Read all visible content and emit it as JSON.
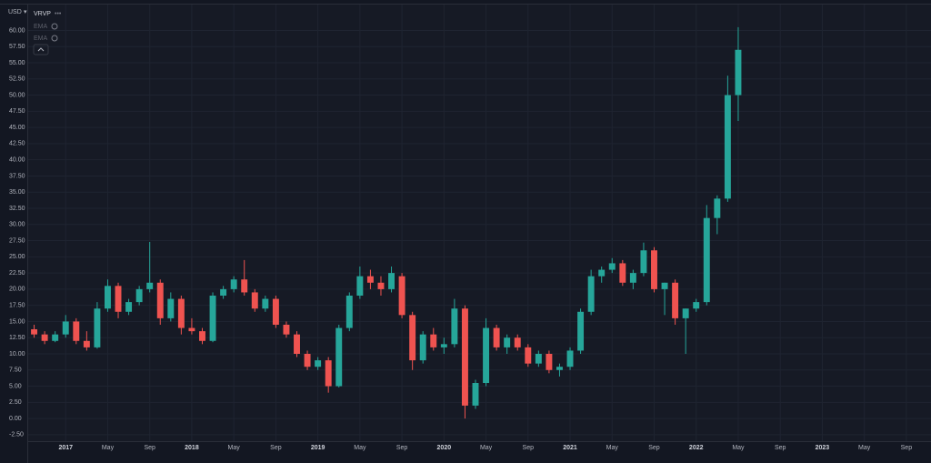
{
  "chart_data": {
    "type": "candlestick",
    "currency": "USD",
    "indicators": [
      "VRVP",
      "EMA",
      "EMA"
    ],
    "up_color": "#26a69a",
    "down_color": "#ef5350",
    "grid": true,
    "x": [
      "2016-10",
      "2016-11",
      "2016-12",
      "2017-01",
      "2017-02",
      "2017-03",
      "2017-04",
      "2017-05",
      "2017-06",
      "2017-07",
      "2017-08",
      "2017-09",
      "2017-10",
      "2017-11",
      "2017-12",
      "2018-01",
      "2018-02",
      "2018-03",
      "2018-04",
      "2018-05",
      "2018-06",
      "2018-07",
      "2018-08",
      "2018-09",
      "2018-10",
      "2018-11",
      "2018-12",
      "2019-01",
      "2019-02",
      "2019-03",
      "2019-04",
      "2019-05",
      "2019-06",
      "2019-07",
      "2019-08",
      "2019-09",
      "2019-10",
      "2019-11",
      "2019-12",
      "2020-01",
      "2020-02",
      "2020-03",
      "2020-04",
      "2020-05",
      "2020-06",
      "2020-07",
      "2020-08",
      "2020-09",
      "2020-10",
      "2020-11",
      "2020-12",
      "2021-01",
      "2021-02",
      "2021-03",
      "2021-04",
      "2021-05",
      "2021-06",
      "2021-07",
      "2021-08",
      "2021-09",
      "2021-10",
      "2021-11",
      "2021-12",
      "2022-01",
      "2022-02",
      "2022-03",
      "2022-04",
      "2022-05"
    ],
    "open": [
      13.8,
      13,
      12,
      13,
      15,
      12,
      11,
      17,
      20.5,
      16.5,
      18,
      20,
      21,
      15.5,
      18.5,
      14,
      13.5,
      12,
      19,
      20,
      21.5,
      19.5,
      17,
      18.5,
      14.5,
      13,
      10,
      8,
      9,
      5,
      14,
      19,
      22,
      21,
      20,
      22,
      16,
      9,
      13,
      11,
      11.5,
      17,
      2,
      5.5,
      14,
      11,
      12.5,
      11,
      8.5,
      10,
      7.5,
      8,
      10.5,
      16.5,
      22,
      23,
      24,
      21,
      22.5,
      26,
      20,
      21,
      15.5,
      17,
      18,
      31,
      34,
      50
    ],
    "high": [
      14.5,
      13.5,
      13.5,
      16,
      15.5,
      13.5,
      18,
      21.5,
      21,
      18.5,
      20.5,
      27.3,
      21.5,
      19.5,
      19,
      15.5,
      14,
      19.5,
      20.5,
      22,
      24.5,
      20,
      19,
      19,
      15,
      13.5,
      10.5,
      9.5,
      9.5,
      14.5,
      19.5,
      23.5,
      23,
      22,
      23.5,
      22.5,
      16.5,
      13.5,
      14,
      12.5,
      18.5,
      17.5,
      6,
      15.5,
      14.5,
      13,
      13,
      11.5,
      10.5,
      10.5,
      8.5,
      11,
      17,
      23,
      23.5,
      24.8,
      24.5,
      23,
      27.2,
      26.5,
      21,
      21.5,
      17,
      18.5,
      33,
      34.5,
      53,
      60.5
    ],
    "low": [
      12.5,
      11.5,
      11.8,
      12.5,
      11.5,
      10.5,
      10.8,
      16.5,
      15.5,
      16,
      17.5,
      19.5,
      14.5,
      15,
      13,
      13,
      11.5,
      11.8,
      18.5,
      19.5,
      19,
      16.5,
      16.5,
      14,
      12.5,
      9.5,
      7.5,
      7.5,
      4,
      4.8,
      13.5,
      18.5,
      20,
      19,
      19.5,
      15.5,
      7.5,
      8.5,
      10.5,
      10,
      11,
      0,
      1.5,
      5,
      10.5,
      10,
      10.5,
      8,
      8,
      7,
      6.5,
      7.5,
      10,
      16,
      21,
      22.5,
      20.5,
      20,
      22,
      19.5,
      16,
      14.5,
      10,
      16.5,
      17.5,
      28.5,
      33.5,
      46
    ],
    "close": [
      13,
      12,
      13,
      15,
      12,
      11,
      17,
      20.5,
      16.5,
      18,
      20,
      21,
      15.5,
      18.5,
      14,
      13.5,
      12,
      19,
      20,
      21.5,
      19.5,
      17,
      18.5,
      14.5,
      13,
      10,
      8,
      9,
      5,
      14,
      19,
      22,
      21,
      20,
      22.5,
      16,
      9,
      13,
      11,
      11.5,
      17,
      2,
      5.5,
      14,
      11,
      12.5,
      11,
      8.5,
      10,
      7.5,
      8,
      10.5,
      16.5,
      22,
      23,
      24,
      21,
      22.5,
      26,
      20,
      21,
      15.5,
      17,
      18,
      31,
      34,
      50,
      57
    ],
    "xlim": [
      "2016-09",
      "2023-11"
    ],
    "xticks": [
      {
        "value": "2017-01",
        "label": "2017"
      },
      {
        "value": "2017-05",
        "label": "May"
      },
      {
        "value": "2017-09",
        "label": "Sep"
      },
      {
        "value": "2018-01",
        "label": "2018"
      },
      {
        "value": "2018-05",
        "label": "May"
      },
      {
        "value": "2018-09",
        "label": "Sep"
      },
      {
        "value": "2019-01",
        "label": "2019"
      },
      {
        "value": "2019-05",
        "label": "May"
      },
      {
        "value": "2019-09",
        "label": "Sep"
      },
      {
        "value": "2020-01",
        "label": "2020"
      },
      {
        "value": "2020-05",
        "label": "May"
      },
      {
        "value": "2020-09",
        "label": "Sep"
      },
      {
        "value": "2021-01",
        "label": "2021"
      },
      {
        "value": "2021-05",
        "label": "May"
      },
      {
        "value": "2021-09",
        "label": "Sep"
      },
      {
        "value": "2022-01",
        "label": "2022"
      },
      {
        "value": "2022-05",
        "label": "May"
      },
      {
        "value": "2022-09",
        "label": "Sep"
      },
      {
        "value": "2023-01",
        "label": "2023"
      },
      {
        "value": "2023-05",
        "label": "May"
      },
      {
        "value": "2023-09",
        "label": "Sep"
      }
    ],
    "ylim": [
      -3.5,
      64
    ],
    "yticks": [
      {
        "value": -2.5,
        "label": "-2.50"
      },
      {
        "value": 0,
        "label": "0.00"
      },
      {
        "value": 2.5,
        "label": "2.50"
      },
      {
        "value": 5,
        "label": "5.00"
      },
      {
        "value": 7.5,
        "label": "7.50"
      },
      {
        "value": 10,
        "label": "10.00"
      },
      {
        "value": 12.5,
        "label": "12.50"
      },
      {
        "value": 15,
        "label": "15.00"
      },
      {
        "value": 17.5,
        "label": "17.50"
      },
      {
        "value": 20,
        "label": "20.00"
      },
      {
        "value": 22.5,
        "label": "22.50"
      },
      {
        "value": 25,
        "label": "25.00"
      },
      {
        "value": 27.5,
        "label": "27.50"
      },
      {
        "value": 30,
        "label": "30.00"
      },
      {
        "value": 32.5,
        "label": "32.50"
      },
      {
        "value": 35,
        "label": "35.00"
      },
      {
        "value": 37.5,
        "label": "37.50"
      },
      {
        "value": 40,
        "label": "40.00"
      },
      {
        "value": 42.5,
        "label": "42.50"
      },
      {
        "value": 45,
        "label": "45.00"
      },
      {
        "value": 47.5,
        "label": "47.50"
      },
      {
        "value": 50,
        "label": "50.00"
      },
      {
        "value": 52.5,
        "label": "52.50"
      },
      {
        "value": 55,
        "label": "55.00"
      },
      {
        "value": 57.5,
        "label": "57.50"
      },
      {
        "value": 60,
        "label": "60.00"
      }
    ]
  }
}
